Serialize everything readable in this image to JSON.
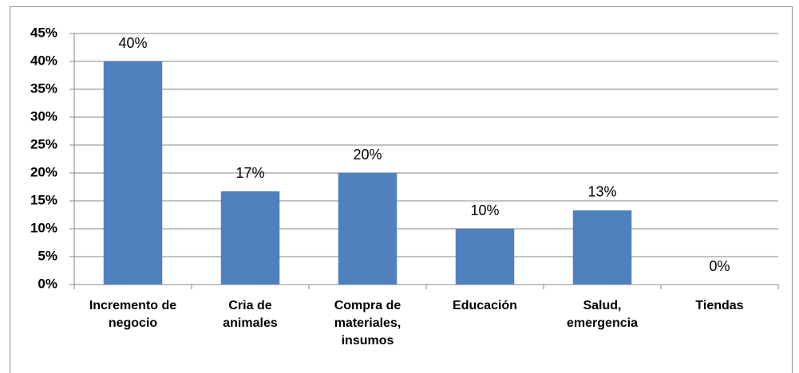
{
  "chart_data": {
    "type": "bar",
    "categories": [
      "Incremento de negocio",
      "Cria de animales",
      "Compra de materiales, insumos",
      "Educación",
      "Salud, emergencia",
      "Tiendas"
    ],
    "values": [
      40,
      16.7,
      20,
      10,
      13.3,
      0
    ],
    "value_labels": [
      "40%",
      "17%",
      "20%",
      "10%",
      "13%",
      "0%"
    ],
    "color": "#4f81bd",
    "ylim": [
      0,
      45
    ],
    "yticks": [
      {
        "value": 0,
        "label": "0%"
      },
      {
        "value": 5,
        "label": "5%"
      },
      {
        "value": 10,
        "label": "10%"
      },
      {
        "value": 15,
        "label": "15%"
      },
      {
        "value": 20,
        "label": "20%"
      },
      {
        "value": 25,
        "label": "25%"
      },
      {
        "value": 30,
        "label": "30%"
      },
      {
        "value": 35,
        "label": "35%"
      },
      {
        "value": 40,
        "label": "40%"
      },
      {
        "value": 45,
        "label": "45%"
      }
    ],
    "grid": true
  }
}
